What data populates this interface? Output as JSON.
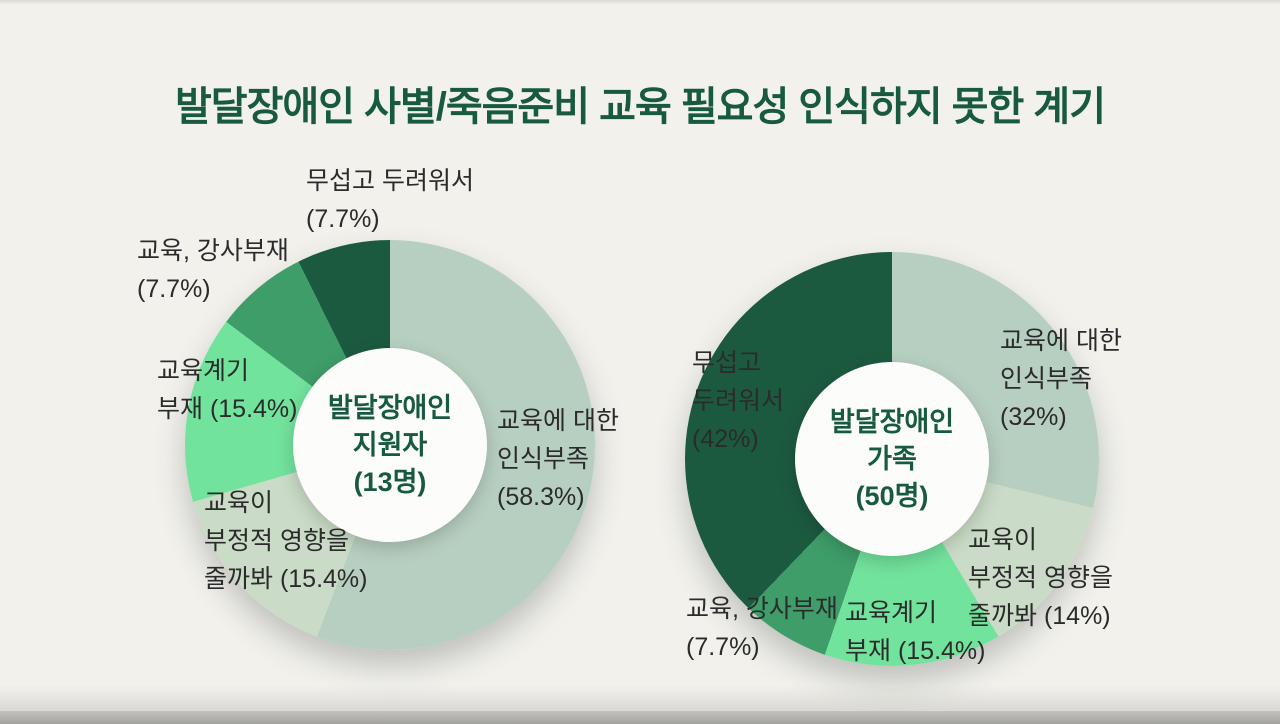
{
  "page": {
    "title": "발달장애인 사별/죽음준비 교육 필요성 인식하지 못한 계기"
  },
  "colors": {
    "title_text": "#185a40",
    "background": "#f2f1ec",
    "label_text": "#2b2b2b",
    "center_text": "#185a40",
    "hole_fill": "#fcfcfa",
    "footer_bar": "#a3a29e"
  },
  "chart_data": [
    {
      "type": "pie",
      "variant": "donut",
      "group": "발달장애인 지원자",
      "center_lines": [
        "발달장애인",
        "지원자",
        "(13명)"
      ],
      "legend_position": "around",
      "segments": [
        {
          "name": "교육에 대한 인식부족",
          "value": 58.3,
          "color": "#b7cfc0",
          "lines": [
            "교육에 대한",
            "인식부족",
            "(58.3%)"
          ]
        },
        {
          "name": "교육이 부정적 영향을 줄까봐",
          "value": 15.4,
          "color": "#cadcc7",
          "lines": [
            "교육이",
            "부정적 영향을",
            "줄까봐 (15.4%)"
          ]
        },
        {
          "name": "교육계기 부재",
          "value": 15.4,
          "color": "#72e39d",
          "lines": [
            "교육계기",
            "부재 (15.4%)"
          ]
        },
        {
          "name": "교육, 강사부재",
          "value": 7.7,
          "color": "#3f9d69",
          "lines": [
            "교육, 강사부재",
            "(7.7%)"
          ]
        },
        {
          "name": "무섭고 두려워서",
          "value": 7.7,
          "color": "#1c5a40",
          "lines": [
            "무섭고 두려워서",
            "(7.7%)"
          ]
        }
      ]
    },
    {
      "type": "pie",
      "variant": "donut",
      "group": "발달장애인 가족",
      "center_lines": [
        "발달장애인",
        "가족",
        "(50명)"
      ],
      "legend_position": "around",
      "segments": [
        {
          "name": "교육에 대한 인식부족",
          "value": 32,
          "color": "#b7cfc0",
          "lines": [
            "교육에 대한",
            "인식부족",
            "(32%)"
          ]
        },
        {
          "name": "교육이 부정적 영향을 줄까봐",
          "value": 14,
          "color": "#cadcc7",
          "lines": [
            "교육이",
            "부정적 영향을",
            "줄까봐 (14%)"
          ]
        },
        {
          "name": "교육계기 부재",
          "value": 15.4,
          "color": "#72e39d",
          "lines": [
            "교육계기",
            "부재 (15.4%)"
          ]
        },
        {
          "name": "교육, 강사부재",
          "value": 7.7,
          "color": "#3f9d69",
          "lines": [
            "교육, 강사부재",
            "(7.7%)"
          ]
        },
        {
          "name": "무섭고 두려워서",
          "value": 42,
          "color": "#1c5a40",
          "lines": [
            "무섭고",
            "두려워서",
            "(42%)"
          ]
        }
      ]
    }
  ]
}
